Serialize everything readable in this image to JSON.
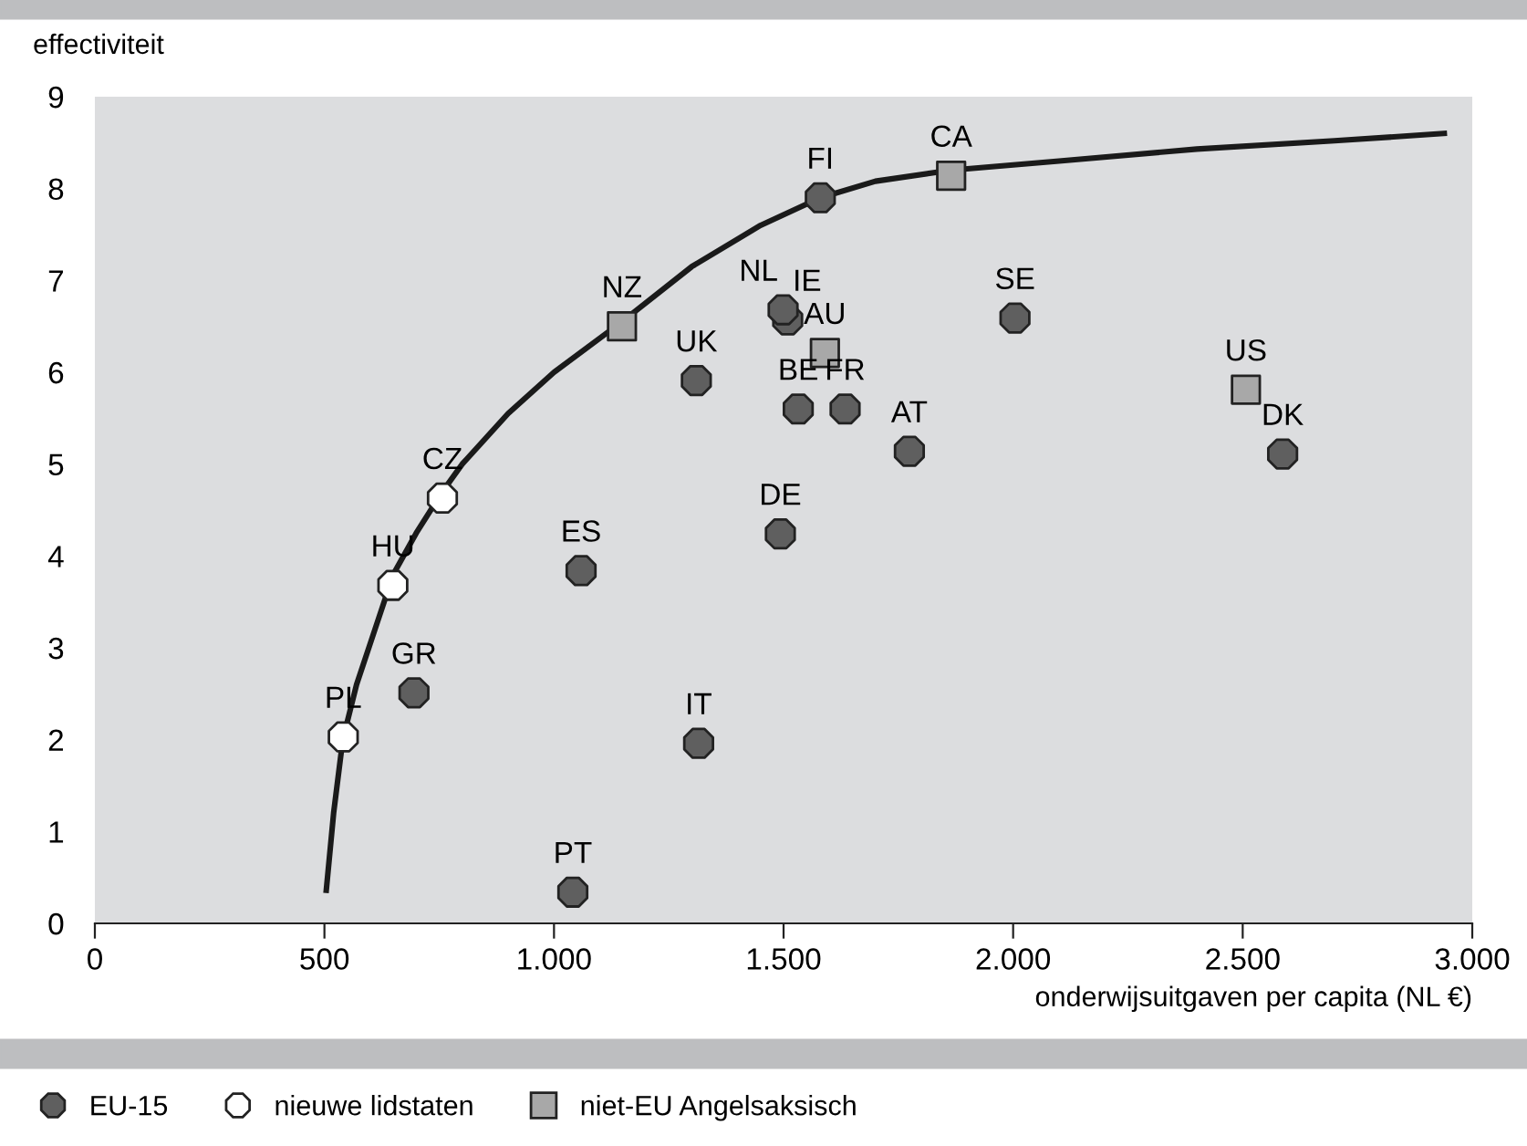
{
  "chart_data": {
    "type": "scatter",
    "xlabel": "onderwijsuitgaven per capita (NL €)",
    "ylabel": "effectiviteit",
    "xlim": [
      0,
      3000
    ],
    "xticks": [
      0,
      {
        "value": 500,
        "label": "500"
      },
      {
        "value": 1000,
        "label": "1.000"
      },
      {
        "value": 1500,
        "label": "1.500"
      },
      {
        "value": 2000,
        "label": "2.000"
      },
      {
        "value": 2500,
        "label": "2.500"
      },
      {
        "value": 3000,
        "label": "3.000"
      }
    ],
    "ylim": [
      0,
      9
    ],
    "yticks": [
      0,
      1,
      2,
      3,
      4,
      5,
      6,
      7,
      8,
      9
    ],
    "grid": false,
    "legend": "bottom left",
    "series": [
      {
        "name": "EU-15",
        "color": "#5f5f5f",
        "marker": "circle",
        "x": [
          1580,
          1499,
          1509,
          1310,
          1532,
          1634,
          1493,
          1059,
          695,
          1315,
          1041,
          2004,
          1774,
          2587
        ],
        "values": [
          7.9,
          6.68,
          6.57,
          5.91,
          5.6,
          5.6,
          4.24,
          3.84,
          2.51,
          1.96,
          0.34,
          6.59,
          5.14,
          5.11
        ]
      },
      {
        "name": "nieuwe lidstaten",
        "color": "#ffffff",
        "marker": "circle",
        "x": [
          757,
          649,
          541
        ],
        "values": [
          4.63,
          3.68,
          2.03
        ]
      },
      {
        "name": "niet-EU Angelsaksisch",
        "color": "#a8a8a8",
        "marker": "square",
        "x": [
          1148,
          1590,
          1865,
          2507
        ],
        "values": [
          6.5,
          6.21,
          8.14,
          5.81
        ]
      },
      {
        "type": "line",
        "color": "#1a1a1a",
        "marker": "none",
        "line_style": "solid",
        "x": [
          504,
          520,
          540,
          570,
          610,
          650,
          700,
          757,
          800,
          900,
          1000,
          1148,
          1300,
          1450,
          1580,
          1700,
          1865,
          2100,
          2400,
          2700,
          2939
        ],
        "values": [
          0.36,
          1.2,
          2.0,
          2.6,
          3.2,
          3.8,
          4.25,
          4.7,
          5.0,
          5.55,
          6.0,
          6.55,
          7.15,
          7.6,
          7.9,
          8.08,
          8.2,
          8.3,
          8.43,
          8.52,
          8.6
        ]
      }
    ],
    "annotations": [
      {
        "text": "FI",
        "x": 1580,
        "y": 7.9
      },
      {
        "text": "NL",
        "x": 1499,
        "y": 6.68
      },
      {
        "text": "IE",
        "x": 1509,
        "y": 6.57
      },
      {
        "text": "UK",
        "x": 1310,
        "y": 5.91
      },
      {
        "text": "BE",
        "x": 1532,
        "y": 5.6
      },
      {
        "text": "FR",
        "x": 1634,
        "y": 5.6
      },
      {
        "text": "DE",
        "x": 1493,
        "y": 4.24
      },
      {
        "text": "ES",
        "x": 1059,
        "y": 3.84
      },
      {
        "text": "GR",
        "x": 695,
        "y": 2.51
      },
      {
        "text": "IT",
        "x": 1315,
        "y": 1.96
      },
      {
        "text": "PT",
        "x": 1041,
        "y": 0.34
      },
      {
        "text": "SE",
        "x": 2004,
        "y": 6.59
      },
      {
        "text": "AT",
        "x": 1774,
        "y": 5.14
      },
      {
        "text": "DK",
        "x": 2587,
        "y": 5.11
      },
      {
        "text": "CZ",
        "x": 757,
        "y": 4.63
      },
      {
        "text": "HU",
        "x": 649,
        "y": 3.68
      },
      {
        "text": "PL",
        "x": 541,
        "y": 2.03
      },
      {
        "text": "NZ",
        "x": 1148,
        "y": 6.5
      },
      {
        "text": "AU",
        "x": 1590,
        "y": 6.21
      },
      {
        "text": "CA",
        "x": 1865,
        "y": 8.14
      },
      {
        "text": "US",
        "x": 2507,
        "y": 5.81
      }
    ]
  }
}
